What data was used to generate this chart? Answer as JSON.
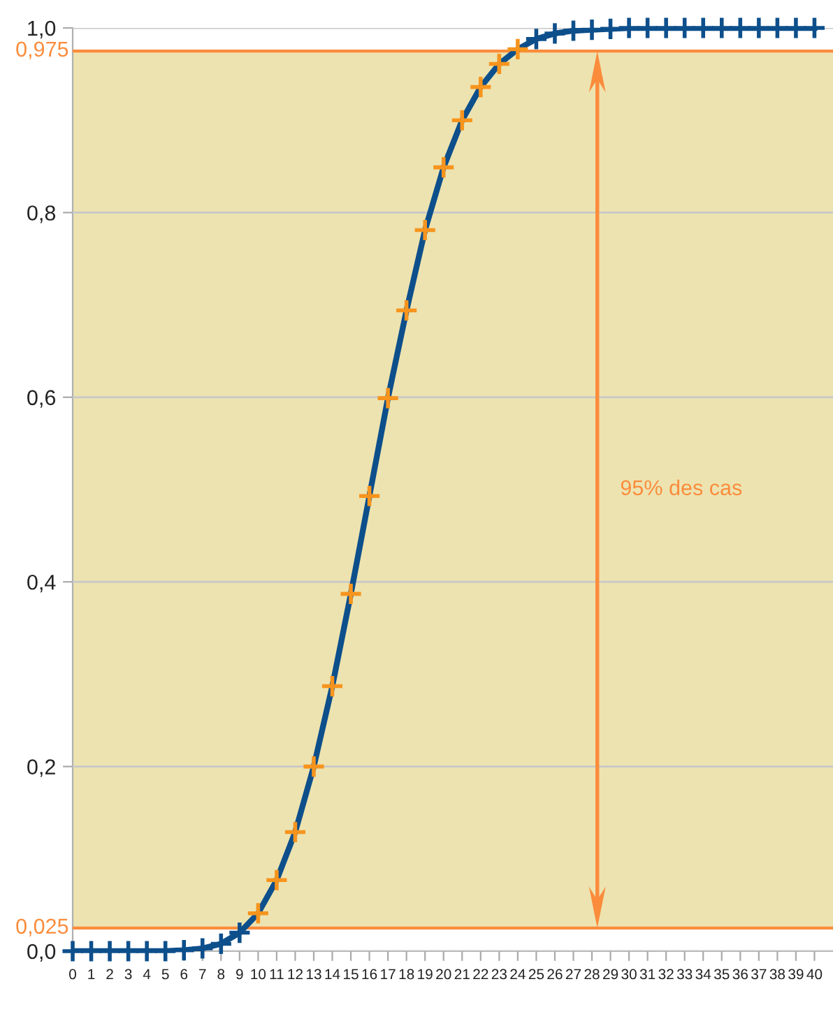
{
  "chart_data": {
    "type": "line",
    "x": [
      0,
      1,
      2,
      3,
      4,
      5,
      6,
      7,
      8,
      9,
      10,
      11,
      12,
      13,
      14,
      15,
      16,
      17,
      18,
      19,
      20,
      21,
      22,
      23,
      24,
      25,
      26,
      27,
      28,
      29,
      30,
      31,
      32,
      33,
      34,
      35,
      36,
      37,
      38,
      39,
      40
    ],
    "series": [
      {
        "color": "#0d4f8b",
        "values": [
          0,
          0,
          0,
          0,
          0,
          0,
          0.001,
          0.003,
          0.008,
          0.02,
          0.041,
          0.077,
          0.129,
          0.2,
          0.287,
          0.387,
          0.493,
          0.599,
          0.694,
          0.781,
          0.849,
          0.9,
          0.936,
          0.961,
          0.977,
          0.988,
          0.994,
          0.997,
          0.998,
          0.999,
          1,
          1,
          1,
          1,
          1,
          1,
          1,
          1,
          1,
          1,
          1
        ],
        "colors": [
          "#0d4f8b",
          "#0d4f8b",
          "#0d4f8b",
          "#0d4f8b",
          "#0d4f8b",
          "#0d4f8b",
          "#0d4f8b",
          "#0d4f8b",
          "#0d4f8b",
          "#0d4f8b",
          "#f7941d",
          "#f7941d",
          "#f7941d",
          "#f7941d",
          "#f7941d",
          "#f7941d",
          "#f7941d",
          "#f7941d",
          "#f7941d",
          "#f7941d",
          "#f7941d",
          "#f7941d",
          "#f7941d",
          "#f7941d",
          "#f7941d",
          "#0d4f8b",
          "#0d4f8b",
          "#0d4f8b",
          "#0d4f8b",
          "#0d4f8b",
          "#0d4f8b",
          "#0d4f8b",
          "#0d4f8b",
          "#0d4f8b",
          "#0d4f8b",
          "#0d4f8b",
          "#0d4f8b",
          "#0d4f8b",
          "#0d4f8b",
          "#0d4f8b",
          "#0d4f8b"
        ]
      }
    ],
    "marker": "cross",
    "line_style": "solid",
    "xlim": [
      0,
      41
    ],
    "xticks": [
      0,
      1,
      2,
      3,
      4,
      5,
      6,
      7,
      8,
      9,
      10,
      11,
      12,
      13,
      14,
      15,
      16,
      17,
      18,
      19,
      20,
      21,
      22,
      23,
      24,
      25,
      26,
      27,
      28,
      29,
      30,
      31,
      32,
      33,
      34,
      35,
      36,
      37,
      38,
      39,
      40
    ],
    "ylim": [
      0,
      1
    ],
    "yticks": [
      {
        "value": 0,
        "label": "0,0"
      },
      {
        "value": 0.2,
        "label": "0,2"
      },
      {
        "value": 0.4,
        "label": "0,4"
      },
      {
        "value": 0.6,
        "label": "0,6"
      },
      {
        "value": 0.8,
        "label": "0,8"
      },
      {
        "value": 1,
        "label": "1,0"
      }
    ],
    "grid": "y",
    "ref_lines": [
      {
        "axis": "y",
        "value": 0.025,
        "label": "0,025",
        "color": "#fb8c3c"
      },
      {
        "axis": "y",
        "value": 0.975,
        "label": "0,975",
        "color": "#fb8c3c"
      }
    ],
    "bands": [
      {
        "axis": "y",
        "from": 0.025,
        "to": 0.975,
        "label": "95% des cas",
        "color": "#ede3b0"
      }
    ]
  }
}
